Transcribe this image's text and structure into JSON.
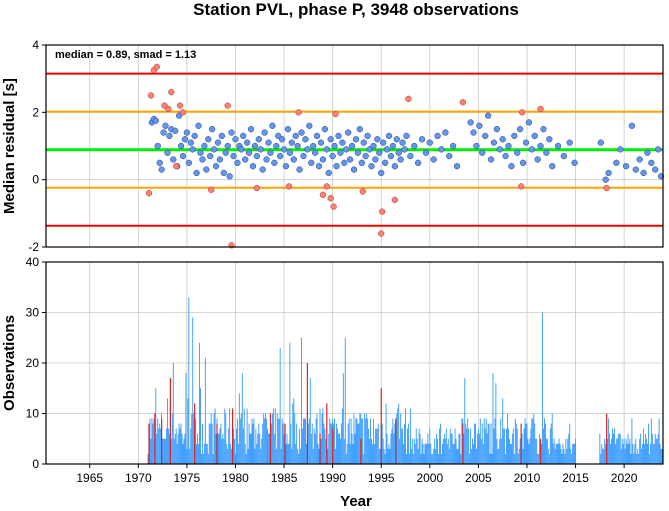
{
  "chart_data": [
    {
      "type": "scatter",
      "title": "Station PVL, phase P, 3948 observations",
      "xlabel": "",
      "ylabel": "Median residual [s]",
      "annotation": "median = 0.89, smad = 1.13",
      "xlim": [
        1960.5,
        2024.0
      ],
      "ylim": [
        -2,
        4
      ],
      "y_ticks": [
        -2,
        0,
        2,
        4
      ],
      "grid": true,
      "reference_lines": [
        {
          "kind": "median",
          "y": 0.89,
          "color": "#00ee00"
        },
        {
          "kind": "upper-1smad",
          "y": 2.02,
          "color": "#ffa500"
        },
        {
          "kind": "lower-1smad",
          "y": -0.24,
          "color": "#ffa500"
        },
        {
          "kind": "upper-2smad",
          "y": 3.15,
          "color": "#ee0000"
        },
        {
          "kind": "lower-2smad",
          "y": -1.37,
          "color": "#ee0000"
        }
      ],
      "colors": {
        "inlier": "#6495ed",
        "outlier": "#fa8072"
      },
      "inliers": [
        [
          1971.4,
          1.7
        ],
        [
          1971.6,
          1.8
        ],
        [
          1971.8,
          1.75
        ],
        [
          1972.0,
          1.0
        ],
        [
          1972.2,
          0.5
        ],
        [
          1972.4,
          0.3
        ],
        [
          1972.6,
          1.4
        ],
        [
          1972.8,
          1.6
        ],
        [
          1973.0,
          0.8
        ],
        [
          1973.2,
          1.3
        ],
        [
          1973.4,
          1.5
        ],
        [
          1973.6,
          0.6
        ],
        [
          1973.8,
          1.45
        ],
        [
          1974.0,
          0.4
        ],
        [
          1974.2,
          1.9
        ],
        [
          1974.4,
          1.0
        ],
        [
          1974.6,
          0.7
        ],
        [
          1974.8,
          1.2
        ],
        [
          1975.0,
          1.4
        ],
        [
          1975.2,
          0.5
        ],
        [
          1975.4,
          1.1
        ],
        [
          1975.6,
          0.9
        ],
        [
          1975.8,
          1.3
        ],
        [
          1976.0,
          0.2
        ],
        [
          1976.2,
          1.6
        ],
        [
          1976.4,
          0.8
        ],
        [
          1976.6,
          0.6
        ],
        [
          1976.8,
          1.0
        ],
        [
          1977.0,
          0.3
        ],
        [
          1977.2,
          1.2
        ],
        [
          1977.4,
          0.7
        ],
        [
          1977.6,
          1.5
        ],
        [
          1977.8,
          0.9
        ],
        [
          1978.0,
          0.4
        ],
        [
          1978.2,
          1.1
        ],
        [
          1978.4,
          0.6
        ],
        [
          1978.6,
          1.3
        ],
        [
          1978.8,
          0.2
        ],
        [
          1979.0,
          0.8
        ],
        [
          1979.2,
          1.0
        ],
        [
          1979.4,
          0.1
        ],
        [
          1979.6,
          1.4
        ],
        [
          1979.8,
          0.7
        ],
        [
          1980.0,
          1.2
        ],
        [
          1980.2,
          0.5
        ],
        [
          1980.4,
          1.0
        ],
        [
          1980.6,
          0.9
        ],
        [
          1980.8,
          1.3
        ],
        [
          1981.0,
          0.6
        ],
        [
          1981.2,
          1.1
        ],
        [
          1981.4,
          0.8
        ],
        [
          1981.6,
          1.5
        ],
        [
          1981.8,
          0.4
        ],
        [
          1982.0,
          1.0
        ],
        [
          1982.2,
          0.7
        ],
        [
          1982.4,
          1.2
        ],
        [
          1982.6,
          0.9
        ],
        [
          1982.8,
          0.3
        ],
        [
          1983.0,
          1.4
        ],
        [
          1983.2,
          0.6
        ],
        [
          1983.4,
          1.1
        ],
        [
          1983.6,
          0.8
        ],
        [
          1983.8,
          1.6
        ],
        [
          1984.0,
          0.5
        ],
        [
          1984.2,
          1.0
        ],
        [
          1984.4,
          1.3
        ],
        [
          1984.6,
          0.7
        ],
        [
          1984.8,
          1.2
        ],
        [
          1985.0,
          0.9
        ],
        [
          1985.2,
          0.4
        ],
        [
          1985.4,
          1.5
        ],
        [
          1985.6,
          0.8
        ],
        [
          1985.8,
          1.1
        ],
        [
          1986.0,
          0.6
        ],
        [
          1986.2,
          1.3
        ],
        [
          1986.4,
          1.0
        ],
        [
          1986.6,
          0.3
        ],
        [
          1986.8,
          1.4
        ],
        [
          1987.0,
          0.7
        ],
        [
          1987.2,
          1.2
        ],
        [
          1987.4,
          0.9
        ],
        [
          1987.6,
          1.6
        ],
        [
          1987.8,
          0.5
        ],
        [
          1988.0,
          1.0
        ],
        [
          1988.2,
          0.8
        ],
        [
          1988.4,
          1.3
        ],
        [
          1988.6,
          0.4
        ],
        [
          1988.8,
          1.1
        ],
        [
          1989.0,
          0.6
        ],
        [
          1989.2,
          1.5
        ],
        [
          1989.4,
          0.9
        ],
        [
          1989.6,
          0.2
        ],
        [
          1989.8,
          1.2
        ],
        [
          1990.0,
          0.7
        ],
        [
          1990.2,
          1.0
        ],
        [
          1990.4,
          0.4
        ],
        [
          1990.6,
          1.3
        ],
        [
          1990.8,
          0.8
        ],
        [
          1991.0,
          1.1
        ],
        [
          1991.2,
          0.5
        ],
        [
          1991.4,
          0.9
        ],
        [
          1991.6,
          1.4
        ],
        [
          1991.8,
          0.6
        ],
        [
          1992.0,
          1.0
        ],
        [
          1992.2,
          0.3
        ],
        [
          1992.4,
          1.2
        ],
        [
          1992.6,
          0.8
        ],
        [
          1992.8,
          1.5
        ],
        [
          1993.0,
          0.5
        ],
        [
          1993.2,
          1.1
        ],
        [
          1993.4,
          0.7
        ],
        [
          1993.6,
          1.3
        ],
        [
          1993.8,
          0.9
        ],
        [
          1994.0,
          0.4
        ],
        [
          1994.2,
          1.0
        ],
        [
          1994.4,
          0.6
        ],
        [
          1994.6,
          1.2
        ],
        [
          1994.8,
          0.8
        ],
        [
          1995.0,
          0.2
        ],
        [
          1995.2,
          1.1
        ],
        [
          1995.4,
          0.5
        ],
        [
          1995.6,
          0.9
        ],
        [
          1995.8,
          1.3
        ],
        [
          1996.0,
          0.7
        ],
        [
          1996.2,
          1.0
        ],
        [
          1996.4,
          0.4
        ],
        [
          1996.6,
          1.2
        ],
        [
          1996.8,
          0.8
        ],
        [
          1997.0,
          0.6
        ],
        [
          1997.2,
          1.1
        ],
        [
          1997.4,
          0.9
        ],
        [
          1997.6,
          1.3
        ],
        [
          1998.0,
          0.7
        ],
        [
          1998.4,
          1.0
        ],
        [
          1998.8,
          0.5
        ],
        [
          1999.2,
          1.2
        ],
        [
          1999.6,
          0.8
        ],
        [
          2000.0,
          1.1
        ],
        [
          2000.4,
          0.6
        ],
        [
          2000.8,
          1.3
        ],
        [
          2001.2,
          0.9
        ],
        [
          2001.6,
          1.4
        ],
        [
          2002.0,
          0.7
        ],
        [
          2002.4,
          1.0
        ],
        [
          2002.8,
          0.4
        ],
        [
          2004.2,
          1.7
        ],
        [
          2004.5,
          1.4
        ],
        [
          2004.8,
          1.0
        ],
        [
          2005.1,
          1.6
        ],
        [
          2005.4,
          0.8
        ],
        [
          2005.7,
          1.3
        ],
        [
          2006.0,
          1.9
        ],
        [
          2006.3,
          0.6
        ],
        [
          2006.6,
          1.1
        ],
        [
          2006.9,
          1.5
        ],
        [
          2007.2,
          0.9
        ],
        [
          2007.5,
          1.2
        ],
        [
          2007.8,
          0.7
        ],
        [
          2008.1,
          1.0
        ],
        [
          2008.4,
          0.4
        ],
        [
          2008.7,
          1.3
        ],
        [
          2009.0,
          0.8
        ],
        [
          2009.3,
          1.5
        ],
        [
          2009.6,
          0.5
        ],
        [
          2009.9,
          1.1
        ],
        [
          2010.2,
          1.7
        ],
        [
          2010.5,
          0.9
        ],
        [
          2010.8,
          1.3
        ],
        [
          2011.1,
          0.6
        ],
        [
          2011.4,
          1.0
        ],
        [
          2011.7,
          1.5
        ],
        [
          2012.0,
          0.8
        ],
        [
          2012.3,
          1.2
        ],
        [
          2012.6,
          0.4
        ],
        [
          2013.2,
          1.0
        ],
        [
          2013.8,
          0.7
        ],
        [
          2014.4,
          1.1
        ],
        [
          2014.9,
          0.5
        ],
        [
          2017.6,
          1.1
        ],
        [
          2018.1,
          0.0
        ],
        [
          2018.4,
          0.2
        ],
        [
          2019.2,
          0.5
        ],
        [
          2019.6,
          0.9
        ],
        [
          2020.2,
          0.4
        ],
        [
          2020.8,
          1.6
        ],
        [
          2021.2,
          0.3
        ],
        [
          2021.6,
          0.6
        ],
        [
          2022.0,
          0.2
        ],
        [
          2022.4,
          0.8
        ],
        [
          2022.8,
          0.5
        ],
        [
          2023.2,
          0.3
        ],
        [
          2023.5,
          0.9
        ],
        [
          2023.8,
          0.1
        ]
      ],
      "outliers": [
        [
          1971.1,
          -0.4
        ],
        [
          1971.3,
          2.5
        ],
        [
          1971.6,
          3.25
        ],
        [
          1971.9,
          3.35
        ],
        [
          1972.7,
          2.2
        ],
        [
          1973.1,
          2.1
        ],
        [
          1973.4,
          2.6
        ],
        [
          1973.9,
          0.4
        ],
        [
          1974.3,
          2.2
        ],
        [
          1974.6,
          2.0
        ],
        [
          1977.5,
          -0.3
        ],
        [
          1979.2,
          2.2
        ],
        [
          1979.6,
          -1.95
        ],
        [
          1982.2,
          -0.25
        ],
        [
          1985.5,
          -0.2
        ],
        [
          1986.5,
          2.0
        ],
        [
          1989.0,
          -0.45
        ],
        [
          1989.4,
          -0.2
        ],
        [
          1989.8,
          -0.55
        ],
        [
          1990.1,
          -0.8
        ],
        [
          1990.3,
          1.95
        ],
        [
          1993.1,
          -0.35
        ],
        [
          1995.0,
          -1.6
        ],
        [
          1995.1,
          -0.95
        ],
        [
          1996.4,
          -0.6
        ],
        [
          1997.8,
          2.4
        ],
        [
          2003.4,
          2.3
        ],
        [
          2009.4,
          -0.2
        ],
        [
          2011.4,
          2.1
        ],
        [
          2018.2,
          -0.25
        ],
        [
          2009.5,
          2.0
        ]
      ]
    },
    {
      "type": "bar",
      "title": "",
      "xlabel": "Year",
      "ylabel": "Observations",
      "xlim": [
        1960.5,
        2024.0
      ],
      "ylim": [
        0,
        40
      ],
      "y_ticks": [
        0,
        10,
        20,
        30,
        40
      ],
      "x_ticks": [
        1965,
        1970,
        1975,
        1980,
        1985,
        1990,
        1995,
        2000,
        2005,
        2010,
        2015,
        2020
      ],
      "grid": true,
      "colors": {
        "inlier_bar": "#3399ff",
        "outlier_bar": "#dd2222"
      },
      "red_bars": [
        [
          1971.1,
          8
        ],
        [
          1971.7,
          10
        ],
        [
          1972.4,
          9
        ],
        [
          1973.3,
          17
        ],
        [
          1975.8,
          12
        ],
        [
          1978.1,
          8
        ],
        [
          1979.7,
          11
        ],
        [
          1983.6,
          10
        ],
        [
          1985.1,
          8
        ],
        [
          1987.4,
          20
        ],
        [
          1988.7,
          6
        ],
        [
          1989.4,
          12
        ],
        [
          1990.0,
          7
        ],
        [
          1992.9,
          5
        ],
        [
          1995.0,
          15
        ],
        [
          1996.5,
          9
        ],
        [
          2003.4,
          8
        ],
        [
          2009.4,
          8
        ],
        [
          2011.4,
          5
        ],
        [
          2018.2,
          10
        ]
      ]
    }
  ]
}
